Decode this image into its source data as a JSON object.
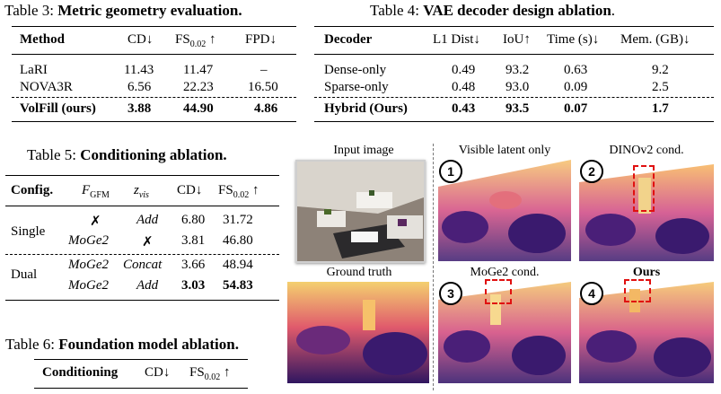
{
  "table3": {
    "caption_prefix": "Table 3: ",
    "caption_bold": "Metric geometry evaluation.",
    "headers": [
      "Method",
      "CD↓",
      "FS",
      "0.02",
      " ↑",
      "FPD↓"
    ],
    "rows": [
      [
        "LaRI",
        "11.43",
        "11.47",
        "–"
      ],
      [
        "NOVA3R",
        "6.56",
        "22.23",
        "16.50"
      ],
      [
        "VolFill (ours)",
        "3.88",
        "44.90",
        "4.86"
      ]
    ]
  },
  "table4": {
    "caption_prefix": "Table 4: ",
    "caption_bold": "VAE decoder design ablation",
    "caption_suffix": ".",
    "headers": [
      "Decoder",
      "L1 Dist↓",
      "IoU↑",
      "Time (s)↓",
      "Mem. (GB)↓"
    ],
    "rows": [
      [
        "Dense-only",
        "0.49",
        "93.2",
        "0.63",
        "9.2"
      ],
      [
        "Sparse-only",
        "0.48",
        "93.0",
        "0.09",
        "2.5"
      ],
      [
        "Hybrid (Ours)",
        "0.43",
        "93.5",
        "0.07",
        "1.7"
      ]
    ]
  },
  "table5": {
    "caption_prefix": "Table 5: ",
    "caption_bold": "Conditioning ablation.",
    "headers": [
      "Config.",
      "F",
      "GFM",
      "z",
      "vis",
      "CD↓",
      "FS",
      "0.02",
      " ↑"
    ],
    "groups": [
      {
        "label": "Single",
        "rows": [
          [
            "✗",
            "Add",
            "6.80",
            "31.72"
          ],
          [
            "MoGe2",
            "✗",
            "3.81",
            "46.80"
          ]
        ]
      },
      {
        "label": "Dual",
        "rows": [
          [
            "MoGe2",
            "Concat",
            "3.66",
            "48.94"
          ],
          [
            "MoGe2",
            "Add",
            "3.03",
            "54.83"
          ]
        ]
      }
    ]
  },
  "table6": {
    "caption_prefix": "Table 6: ",
    "caption_bold": "Foundation model ablation.",
    "headers": [
      "Conditioning",
      "CD↓",
      "FS",
      "0.02",
      " ↑"
    ]
  },
  "figure": {
    "labels": {
      "input": "Input image",
      "visible": "Visible latent only",
      "dinov2": "DINOv2 cond.",
      "gt": "Ground truth",
      "moge2": "MoGe2 cond.",
      "ours": "Ours"
    },
    "badges": [
      "1",
      "2",
      "3",
      "4"
    ],
    "colors": {
      "point_dark": "#3a1a6e",
      "point_mid": "#c23a7a",
      "point_light": "#f3a43a"
    }
  }
}
